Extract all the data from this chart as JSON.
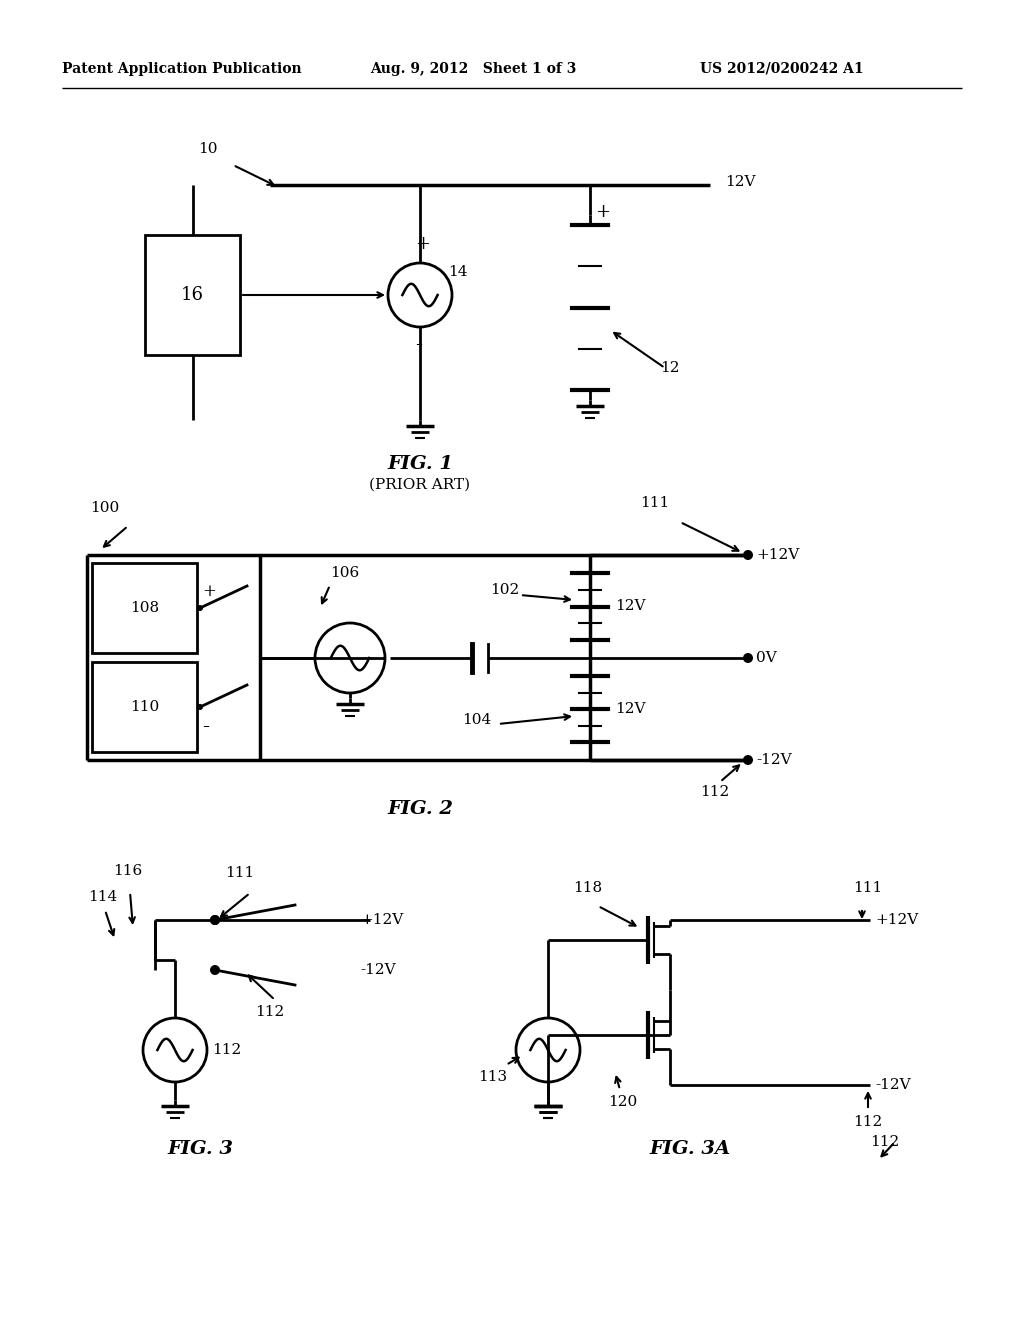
{
  "bg_color": "#ffffff",
  "header_left": "Patent Application Publication",
  "header_mid": "Aug. 9, 2012   Sheet 1 of 3",
  "header_right": "US 2012/0200242 A1"
}
